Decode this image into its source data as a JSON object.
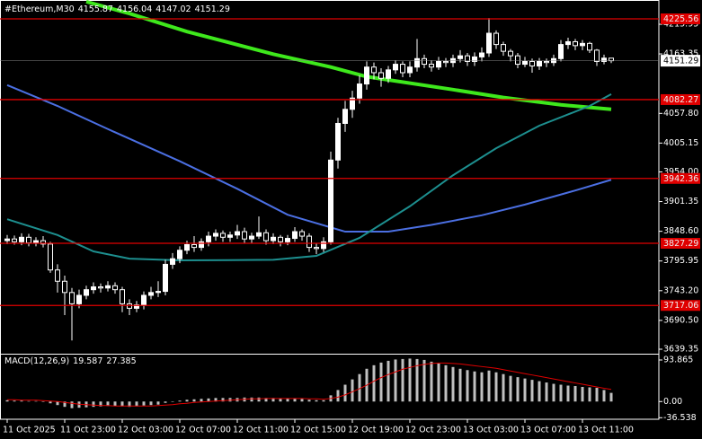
{
  "chart_data": [
    {
      "type": "candlestick",
      "title": "#Ethereum,M30",
      "categories": [
        "11 Oct 2025",
        null,
        null,
        null,
        null,
        null,
        null,
        null,
        "11 Oct 23:00",
        null,
        null,
        null,
        null,
        null,
        null,
        null,
        "12 Oct 03:00",
        null,
        null,
        null,
        null,
        null,
        null,
        null,
        "12 Oct 07:00",
        null,
        null,
        null,
        null,
        null,
        null,
        null,
        "12 Oct 11:00",
        null,
        null,
        null,
        null,
        null,
        null,
        null,
        "12 Oct 15:00",
        null,
        null,
        null,
        null,
        null,
        null,
        null,
        "12 Oct 19:00",
        null,
        null,
        null,
        null,
        null,
        null,
        null,
        "12 Oct 23:00",
        null,
        null,
        null,
        null,
        null,
        null,
        null,
        "13 Oct 03:00",
        null,
        null,
        null,
        null,
        null,
        null,
        null,
        "13 Oct 07:00",
        null,
        null,
        null,
        null,
        null,
        null,
        null,
        "13 Oct 11:00",
        null,
        null,
        null,
        null
      ],
      "open": [
        3832,
        3835,
        3830,
        3838,
        3828,
        3832,
        3826,
        3780,
        3760,
        3740,
        3720,
        3735,
        3745,
        3750,
        3748,
        3752,
        3745,
        3720,
        3712,
        3718,
        3735,
        3740,
        3742,
        3790,
        3800,
        3815,
        3825,
        3820,
        3830,
        3840,
        3845,
        3838,
        3842,
        3848,
        3835,
        3840,
        3846,
        3832,
        3838,
        3830,
        3836,
        3848,
        3840,
        3820,
        3818,
        3830,
        3975,
        4040,
        4065,
        4085,
        4110,
        4140,
        4130,
        4120,
        4135,
        4145,
        4130,
        4140,
        4155,
        4145,
        4140,
        4150,
        4148,
        4155,
        4160,
        4150,
        4158,
        4165,
        4200,
        4180,
        4168,
        4160,
        4145,
        4150,
        4142,
        4150,
        4148,
        4155,
        4180,
        4185,
        4178,
        4182,
        4170,
        4150,
        4155.87
      ],
      "high": [
        3842,
        3841,
        3845,
        3844,
        3838,
        3840,
        3830,
        3790,
        3770,
        3748,
        3745,
        3752,
        3758,
        3756,
        3760,
        3758,
        3750,
        3728,
        3725,
        3742,
        3750,
        3760,
        3798,
        3810,
        3822,
        3832,
        3840,
        3836,
        3848,
        3852,
        3850,
        3848,
        3860,
        3855,
        3846,
        3875,
        3852,
        3845,
        3842,
        3842,
        3856,
        3852,
        3845,
        3828,
        3838,
        3990,
        4050,
        4080,
        4098,
        4125,
        4150,
        4148,
        4138,
        4142,
        4152,
        4150,
        4150,
        4190,
        4162,
        4152,
        4158,
        4156,
        4162,
        4170,
        4165,
        4166,
        4175,
        4227,
        4205,
        4185,
        4172,
        4165,
        4158,
        4155,
        4156,
        4155,
        4162,
        4188,
        4192,
        4190,
        4188,
        4185,
        4172,
        4162,
        4156.04
      ],
      "low": [
        3826,
        3825,
        3824,
        3822,
        3822,
        3820,
        3775,
        3740,
        3700,
        3655,
        3712,
        3728,
        3738,
        3740,
        3742,
        3738,
        3705,
        3700,
        3705,
        3710,
        3728,
        3732,
        3735,
        3782,
        3792,
        3808,
        3812,
        3814,
        3822,
        3832,
        3830,
        3830,
        3835,
        3828,
        3828,
        3835,
        3825,
        3826,
        3822,
        3824,
        3830,
        3832,
        3812,
        3808,
        3812,
        3825,
        3960,
        4025,
        4050,
        4075,
        4100,
        4118,
        4105,
        4112,
        4128,
        4122,
        4122,
        4132,
        4138,
        4132,
        4135,
        4140,
        4140,
        4148,
        4142,
        4142,
        4150,
        4158,
        4172,
        4160,
        4150,
        4138,
        4140,
        4130,
        4135,
        4140,
        4142,
        4150,
        4172,
        4170,
        4170,
        4165,
        4142,
        4145,
        4147.02
      ],
      "close": [
        3835,
        3830,
        3838,
        3828,
        3832,
        3826,
        3780,
        3760,
        3740,
        3720,
        3735,
        3745,
        3750,
        3748,
        3752,
        3745,
        3720,
        3712,
        3718,
        3735,
        3740,
        3742,
        3790,
        3800,
        3815,
        3825,
        3820,
        3830,
        3840,
        3845,
        3838,
        3842,
        3848,
        3835,
        3840,
        3846,
        3832,
        3838,
        3830,
        3836,
        3848,
        3840,
        3820,
        3818,
        3830,
        3975,
        4040,
        4065,
        4085,
        4110,
        4140,
        4130,
        4120,
        4135,
        4145,
        4130,
        4140,
        4155,
        4145,
        4140,
        4150,
        4148,
        4155,
        4160,
        4150,
        4158,
        4165,
        4200,
        4180,
        4168,
        4160,
        4145,
        4150,
        4142,
        4150,
        4148,
        4155,
        4180,
        4185,
        4178,
        4182,
        4170,
        4150,
        4155.87,
        4151.29
      ],
      "ma_series": [
        {
          "color": "#3ee81c",
          "x": [
            11,
            17,
            25,
            37,
            45,
            50,
            62,
            69,
            77,
            84
          ],
          "values": [
            4256,
            4235,
            4203,
            4163,
            4140,
            4123,
            4100,
            4086,
            4073,
            4065
          ]
        },
        {
          "color": "#4b6fe2",
          "x": [
            0,
            7,
            14,
            24,
            32,
            39,
            47,
            53,
            59,
            66,
            72,
            79,
            84
          ],
          "values": [
            4108,
            4071,
            4030,
            3973,
            3924,
            3878,
            3848,
            3848,
            3860,
            3877,
            3896,
            3921,
            3940
          ]
        },
        {
          "color": "#1d8f8f",
          "x": [
            0,
            7,
            12,
            17,
            24,
            37,
            43,
            49,
            56,
            62,
            68,
            74,
            81,
            84
          ],
          "values": [
            3870,
            3842,
            3813,
            3800,
            3797,
            3798,
            3805,
            3837,
            3893,
            3948,
            3996,
            4036,
            4071,
            4092
          ]
        }
      ],
      "levels": [
        4225.56,
        4082.27,
        3942.36,
        3827.29,
        3717.06
      ],
      "level_color": "#e00000",
      "ylim": [
        3633,
        4259
      ],
      "yticks": [
        4215.95,
        4163.35,
        {
          "value": 4057.8,
          "label": "4057.80"
        },
        4005.15,
        {
          "value": 3954,
          "label": "3954.00"
        },
        3901.35,
        {
          "value": 3848.6,
          "label": "3848.60"
        },
        3795.95,
        {
          "value": 3743.2,
          "label": "3743.20"
        },
        {
          "value": 3690.5,
          "label": "3690.50"
        },
        3639.35
      ],
      "grid": false
    },
    {
      "type": "macd",
      "title": "MACD(12,26,9)",
      "values": [
        3,
        2,
        2,
        1,
        1,
        0,
        -4,
        -8,
        -12,
        -15,
        -14,
        -13,
        -12,
        -11,
        -10,
        -10,
        -11,
        -12,
        -11,
        -9,
        -8,
        -7,
        -3,
        -1,
        2,
        4,
        5,
        6,
        7,
        8,
        8,
        8,
        8,
        9,
        9,
        9,
        8,
        8,
        7,
        7,
        7,
        6,
        4,
        3,
        3,
        14,
        26,
        38,
        50,
        62,
        74,
        82,
        88,
        92,
        95,
        96,
        97,
        96,
        94,
        90,
        86,
        82,
        78,
        74,
        71,
        68,
        66,
        70,
        66,
        62,
        58,
        55,
        52,
        49,
        46,
        43,
        40,
        38,
        36,
        35,
        33,
        32,
        31,
        26,
        19.587
      ],
      "signal": [
        4,
        4,
        3,
        3,
        3,
        2,
        1,
        0,
        -2,
        -4,
        -6,
        -7,
        -8,
        -9,
        -9,
        -10,
        -10,
        -10,
        -10,
        -10,
        -10,
        -9,
        -8,
        -7,
        -5,
        -4,
        -2,
        -1,
        0,
        1,
        2,
        3,
        4,
        5,
        6,
        6,
        7,
        7,
        7,
        7,
        7,
        7,
        6,
        6,
        5,
        7,
        10,
        15,
        22,
        29,
        37,
        46,
        54,
        61,
        67,
        73,
        77,
        81,
        84,
        86,
        87,
        87,
        86,
        85,
        83,
        81,
        79,
        77,
        75,
        72,
        69,
        66,
        63,
        60,
        57,
        54,
        51,
        48,
        45,
        42,
        39,
        36,
        33,
        30,
        27.385
      ],
      "color": "#c0c0c0",
      "signal_color": "#e00000",
      "ylim": [
        -38,
        106
      ],
      "yticks": [
        93.865,
        {
          "value": 0,
          "label": "0.00"
        },
        -36.538
      ]
    }
  ]
}
